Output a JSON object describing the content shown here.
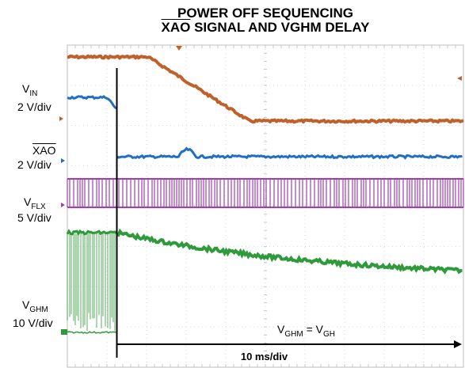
{
  "chart_data": {
    "type": "line",
    "title_line1": "POWER OFF SEQUENCING",
    "title_line2_prefix": "",
    "title_line2_overline": "XAO",
    "title_line2_rest": " SIGNAL AND VGHM DELAY",
    "xlabel": "10 ms/div",
    "x_divisions": 10,
    "y_divisions": 8,
    "grid": true,
    "channels": [
      {
        "id": "vin",
        "name_main": "V",
        "name_sub": "IN",
        "scale": "2 V/div",
        "color": "#1f6fc4"
      },
      {
        "id": "xao",
        "name_overline": "XAO",
        "scale": "2 V/div",
        "color": "#1f6fc4"
      },
      {
        "id": "vflx",
        "name_main": "V",
        "name_sub": "FLX",
        "scale": "5 V/div",
        "color": "#a040b0"
      },
      {
        "id": "vghm",
        "name_main": "V",
        "name_sub": "GHM",
        "scale": "10 V/div",
        "color": "#2f9a3a"
      }
    ],
    "extra_trace_color": "#c0602a",
    "annotation": {
      "main1": "V",
      "sub1": "GHM",
      "eq": " = V",
      "sub2": "GH"
    },
    "event_time_div": 1.25
  }
}
